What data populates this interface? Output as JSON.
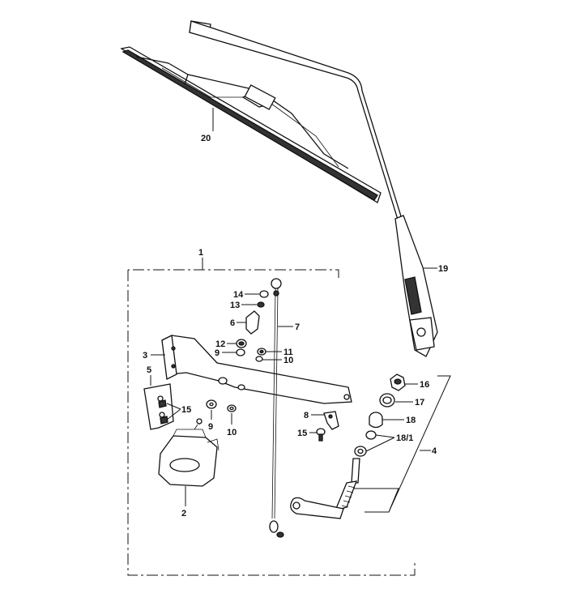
{
  "labels": {
    "p1": "1",
    "p2": "2",
    "p3": "3",
    "p4": "4",
    "p5": "5",
    "p6": "6",
    "p7": "7",
    "p8": "8",
    "p9a": "9",
    "p9b": "9",
    "p10a": "10",
    "p10b": "10",
    "p11": "11",
    "p12": "12",
    "p13": "13",
    "p14": "14",
    "p15a": "15",
    "p15b": "15",
    "p16": "16",
    "p17": "17",
    "p18": "18",
    "p18_1": "18/1",
    "p19": "19",
    "p20": "20"
  },
  "icons": {
    "blade": "wiper-blade-icon",
    "arm": "wiper-arm-icon",
    "motor": "wiper-motor-icon",
    "bracket": "mounting-bracket-icon",
    "rod": "linkage-rod-icon",
    "spindle": "wiper-spindle-icon"
  }
}
